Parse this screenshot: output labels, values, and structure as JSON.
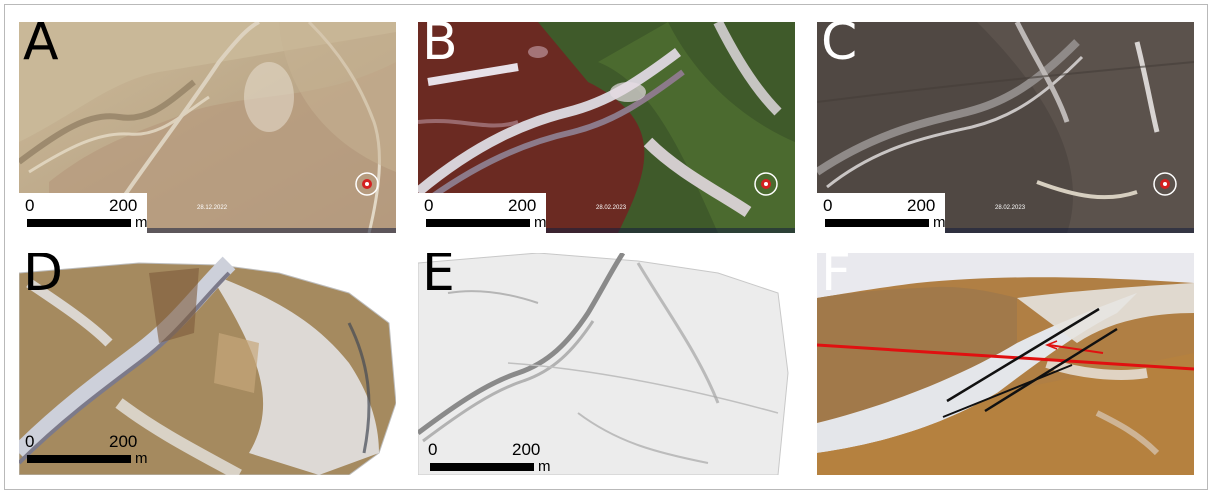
{
  "panels": [
    {
      "id": "A",
      "label": "A",
      "scale_start": "0",
      "scale_end": "200",
      "scale_unit": "m",
      "date": "28.12.2022"
    },
    {
      "id": "B",
      "label": "B",
      "scale_start": "0",
      "scale_end": "200",
      "scale_unit": "m",
      "date": "28.02.2023"
    },
    {
      "id": "C",
      "label": "C",
      "scale_start": "0",
      "scale_end": "200",
      "scale_unit": "m",
      "date": "28.02.2023"
    },
    {
      "id": "D",
      "label": "D",
      "scale_start": "0",
      "scale_end": "200",
      "scale_unit": "m"
    },
    {
      "id": "E",
      "label": "E",
      "scale_start": "0",
      "scale_end": "200",
      "scale_unit": "m"
    },
    {
      "id": "F",
      "label": "F"
    }
  ],
  "colors": {
    "letter_dark": "#000000",
    "letter_light": "#ffffff",
    "fault_line": "#e01010",
    "fault_markers": "#111111"
  },
  "icons": [
    "compass-icon"
  ]
}
